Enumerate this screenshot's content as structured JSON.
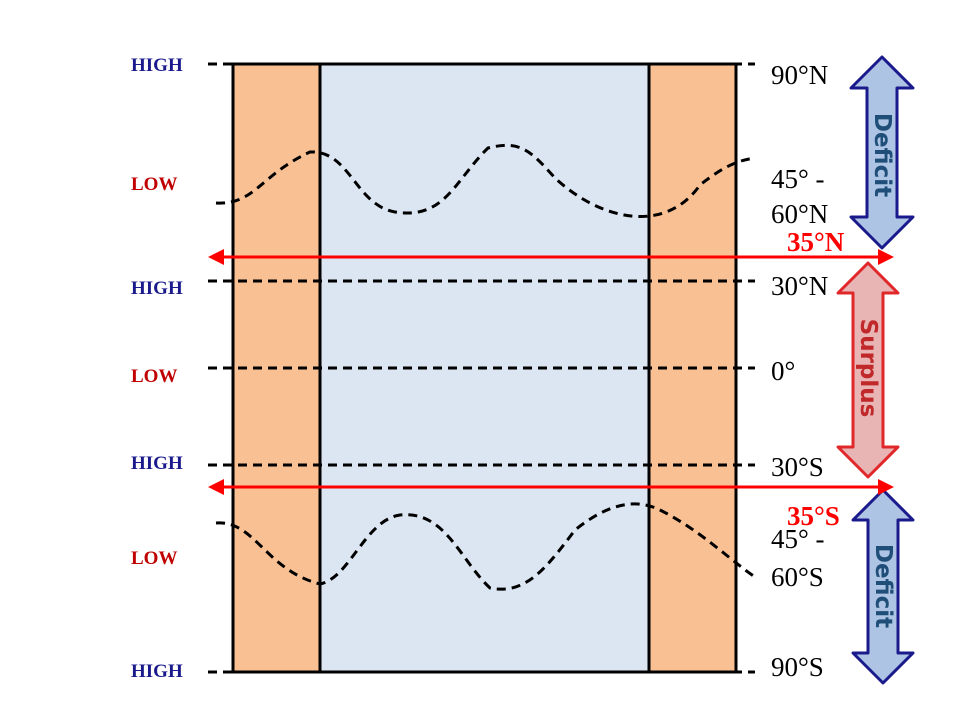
{
  "pressure_labels": [
    {
      "text": "HIGH",
      "kind": "high"
    },
    {
      "text": "LOW",
      "kind": "low"
    },
    {
      "text": "HIGH",
      "kind": "high"
    },
    {
      "text": "LOW",
      "kind": "low"
    },
    {
      "text": "HIGH",
      "kind": "high"
    },
    {
      "text": "LOW",
      "kind": "low"
    },
    {
      "text": "HIGH",
      "kind": "high"
    }
  ],
  "latitude_labels": {
    "n90": "90°N",
    "n45_top": "45° -",
    "n45_bottom": "60°N",
    "n30": "30°N",
    "eq": "0°",
    "s30": "30°S",
    "s45_top": "45° -",
    "s45_bottom": "60°S",
    "s90": "90°S"
  },
  "boundary_markers": {
    "north": "35°N",
    "south": "35°S"
  },
  "energy_bands": {
    "north": "Deficit",
    "middle": "Surplus",
    "south": "Deficit"
  },
  "colors": {
    "high": "#1a1a8c",
    "low": "#c00000",
    "land": "#f9c193",
    "ocean": "#dce6f2",
    "marker": "#ff0000",
    "deficit_fill": "#adc4e4",
    "deficit_stroke": "#1a1a8c",
    "deficit_text": "#1f4e79",
    "surplus_fill": "#e8b4b4",
    "surplus_stroke": "#e0282a",
    "surplus_text": "#c0282a"
  }
}
